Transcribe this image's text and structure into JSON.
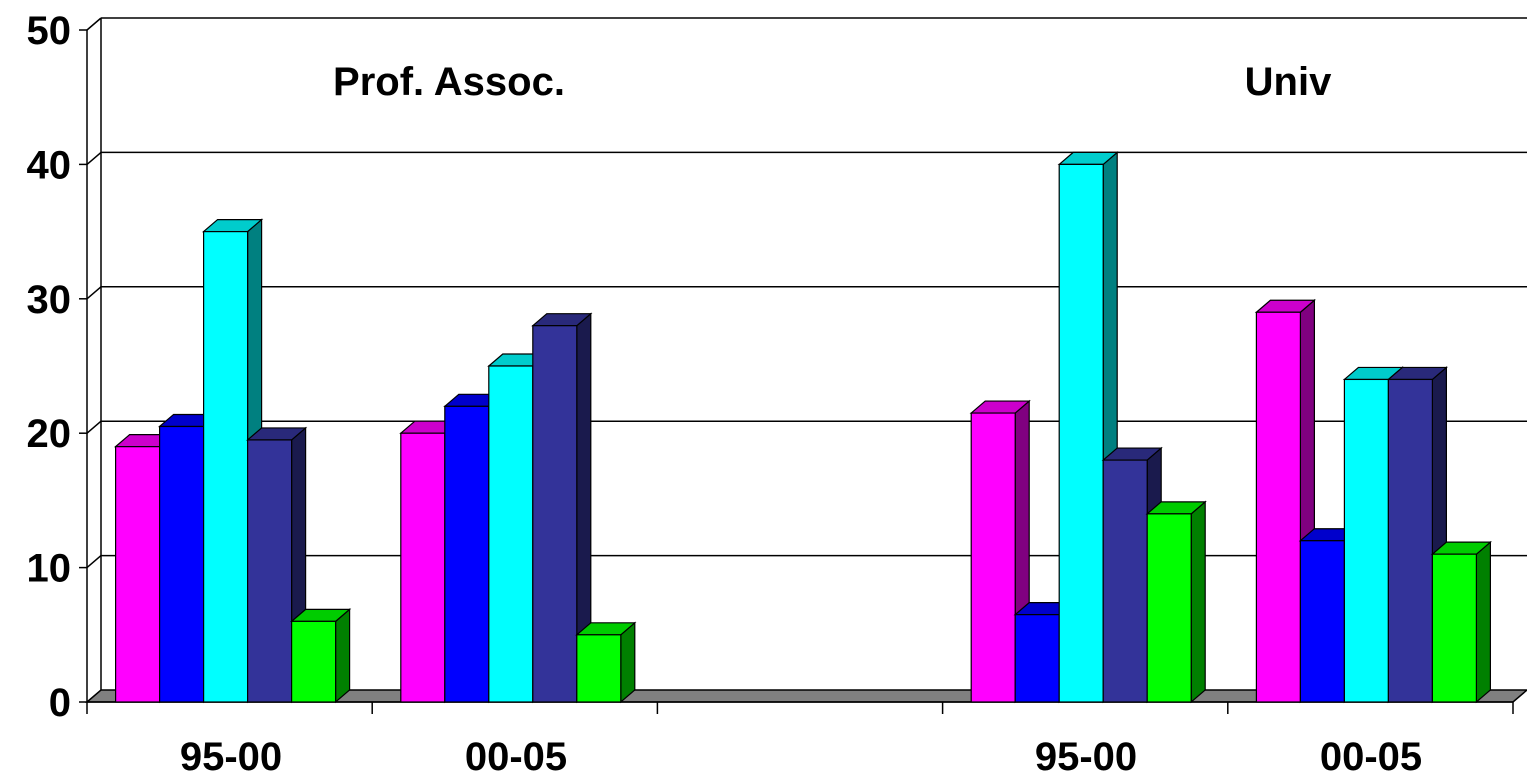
{
  "chart_data": {
    "type": "bar",
    "style": "3d-clustered-columns",
    "ylim": [
      0,
      50
    ],
    "yticks": [
      "0",
      "10",
      "20",
      "30",
      "40",
      "50"
    ],
    "grid": true,
    "groups": [
      {
        "title": "Prof. Assoc.",
        "categories": [
          {
            "label": "95-00",
            "values": [
              19,
              20.5,
              35,
              19.5,
              6
            ]
          },
          {
            "label": "00-05",
            "values": [
              20,
              22,
              25,
              28,
              5
            ]
          }
        ]
      },
      {
        "title": "Univ",
        "categories": [
          {
            "label": "95-00",
            "values": [
              21.5,
              6.5,
              40,
              18,
              14
            ]
          },
          {
            "label": "00-05",
            "values": [
              29,
              12,
              24,
              24,
              11
            ]
          }
        ]
      }
    ],
    "series_colors": [
      {
        "front": "#ff00ff",
        "top": "#cc00cc",
        "side": "#800080"
      },
      {
        "front": "#0000ff",
        "top": "#0000cc",
        "side": "#000080"
      },
      {
        "front": "#00ffff",
        "top": "#00cccc",
        "side": "#008080"
      },
      {
        "front": "#333399",
        "top": "#29297a",
        "side": "#1a1a4d"
      },
      {
        "front": "#00ff00",
        "top": "#00cc00",
        "side": "#008000"
      }
    ]
  }
}
